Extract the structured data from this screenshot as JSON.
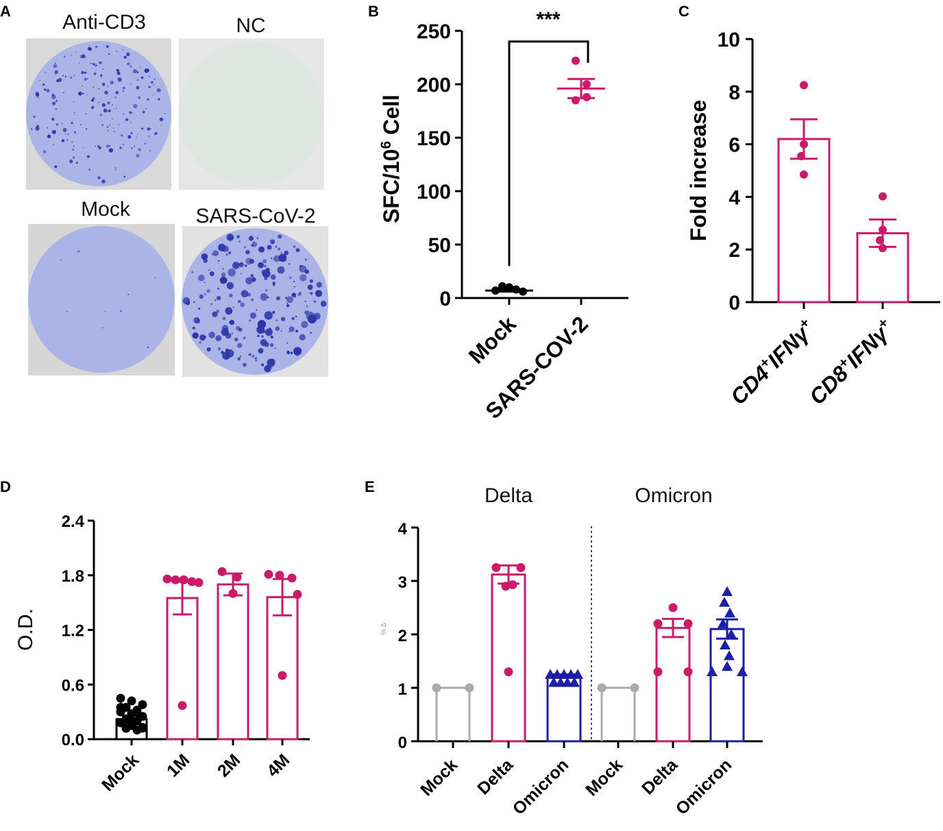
{
  "panels": {
    "A": {
      "letter": "A",
      "wells": [
        {
          "label": "Anti-CD3",
          "kind": "dense"
        },
        {
          "label": "NC",
          "kind": "empty"
        },
        {
          "label": "Mock",
          "kind": "sparse"
        },
        {
          "label": "SARS-CoV-2",
          "kind": "large"
        }
      ],
      "well_color": "#aab4e6",
      "spot_color": "#2b36a8",
      "empty_color": "#dfe6e1"
    },
    "B": {
      "letter": "B",
      "significance": "***",
      "ylabel_main": "SFC/10",
      "ylabel_sup": "6",
      "ylabel_tail": " Cell"
    },
    "C": {
      "letter": "C"
    },
    "D": {
      "letter": "D"
    },
    "E": {
      "letter": "E",
      "group_titles": [
        "Delta",
        "Omicron"
      ],
      "ylabel_text": "% Δ"
    }
  },
  "colors": {
    "magenta": "#cc1a6a",
    "blue": "#1d1fa5",
    "gray": "#aaaaaa",
    "black": "#000000"
  },
  "chart_data": [
    {
      "id": "B",
      "type": "scatter",
      "title": "",
      "xlabel": "",
      "ylabel": "SFC/10^6 Cell",
      "ylim": [
        0,
        250
      ],
      "yticks": [
        0,
        50,
        100,
        150,
        200,
        250
      ],
      "categories": [
        "Mock",
        "SARS-COV-2"
      ],
      "series": [
        {
          "name": "Mock",
          "mean": 7,
          "sem": 1,
          "points": [
            7,
            11,
            10,
            8,
            6
          ],
          "color": "black"
        },
        {
          "name": "SARS-COV-2",
          "mean": 196,
          "sem": 9,
          "points": [
            222,
            200,
            185,
            188
          ],
          "color": "magenta"
        }
      ]
    },
    {
      "id": "C",
      "type": "bar",
      "title": "",
      "xlabel": "",
      "ylabel": "Fold increase",
      "ylim": [
        0,
        10
      ],
      "yticks": [
        0,
        2,
        4,
        6,
        8,
        10
      ],
      "categories": [
        {
          "base": "CD4",
          "sup1": "+",
          "mid": "IFNγ",
          "sup2": "+"
        },
        {
          "base": "CD8",
          "sup1": "+",
          "mid": "IFNγ",
          "sup2": "+"
        }
      ],
      "series": [
        {
          "name": "CD4+IFNγ+",
          "mean": 6.2,
          "sem": 0.75,
          "points": [
            8.25,
            6.0,
            5.55,
            4.85
          ]
        },
        {
          "name": "CD8+IFNγ+",
          "mean": 2.62,
          "sem": 0.52,
          "points": [
            4.02,
            2.75,
            2.35,
            2.05
          ]
        }
      ]
    },
    {
      "id": "D",
      "type": "bar",
      "title": "",
      "xlabel": "",
      "ylabel": "O.D.",
      "ylim": [
        0,
        2.4
      ],
      "yticks": [
        "0.0",
        "0.6",
        "1.2",
        "1.8",
        "2.4"
      ],
      "categories": [
        "Mock",
        "1M",
        "2M",
        "4M"
      ],
      "series": [
        {
          "name": "Mock",
          "mean": 0.22,
          "sem": 0.04,
          "color": "black",
          "points": [
            0.45,
            0.42,
            0.38,
            0.35,
            0.32,
            0.3,
            0.28,
            0.25,
            0.22,
            0.2,
            0.18,
            0.15,
            0.13,
            0.12,
            0.1,
            0.35,
            0.2,
            0.12
          ]
        },
        {
          "name": "1M",
          "mean": 1.55,
          "sem": 0.18,
          "color": "magenta",
          "points": [
            1.76,
            1.75,
            1.75,
            1.73,
            1.72,
            0.37
          ]
        },
        {
          "name": "2M",
          "mean": 1.7,
          "sem": 0.12,
          "color": "magenta",
          "points": [
            1.84,
            1.78,
            1.6
          ]
        },
        {
          "name": "4M",
          "mean": 1.56,
          "sem": 0.2,
          "color": "magenta",
          "points": [
            1.81,
            1.8,
            1.77,
            1.59,
            0.7
          ]
        }
      ]
    },
    {
      "id": "E",
      "type": "bar",
      "title": "",
      "xlabel": "",
      "ylabel": "% Δ",
      "ylim": [
        0,
        4
      ],
      "yticks": [
        0,
        1,
        2,
        3,
        4
      ],
      "categories": [
        "Mock",
        "Delta",
        "Omicron",
        "Mock",
        "Delta",
        "Omicron"
      ],
      "groups": [
        "Delta",
        "Omicron"
      ],
      "series": [
        {
          "name": "Mock",
          "group": "Delta",
          "mean": 1.0,
          "sem": 0,
          "color": "gray",
          "marker": "circle",
          "points": [
            1.0,
            1.0
          ]
        },
        {
          "name": "Delta",
          "group": "Delta",
          "mean": 3.12,
          "sem": 0.17,
          "color": "magenta",
          "marker": "circle",
          "points": [
            3.25,
            3.25,
            2.93,
            2.9,
            1.3
          ]
        },
        {
          "name": "Omicron",
          "group": "Delta",
          "mean": 1.22,
          "sem": 0.03,
          "color": "blue",
          "marker": "triangle",
          "points": [
            1.25,
            1.25,
            1.25,
            1.25,
            1.25,
            1.1,
            1.1,
            1.1,
            1.1
          ]
        },
        {
          "name": "Mock",
          "group": "Omicron",
          "mean": 1.0,
          "sem": 0,
          "color": "gray",
          "marker": "circle",
          "points": [
            1.0,
            1.0
          ]
        },
        {
          "name": "Delta",
          "group": "Omicron",
          "mean": 2.12,
          "sem": 0.17,
          "color": "magenta",
          "marker": "circle",
          "points": [
            2.5,
            2.2,
            2.2,
            1.3,
            1.3
          ]
        },
        {
          "name": "Omicron",
          "group": "Omicron",
          "mean": 2.1,
          "sem": 0.18,
          "color": "blue",
          "marker": "triangle",
          "points": [
            2.8,
            2.6,
            2.4,
            2.2,
            2.0,
            1.8,
            1.6,
            1.4,
            1.3,
            1.3
          ]
        }
      ]
    }
  ]
}
